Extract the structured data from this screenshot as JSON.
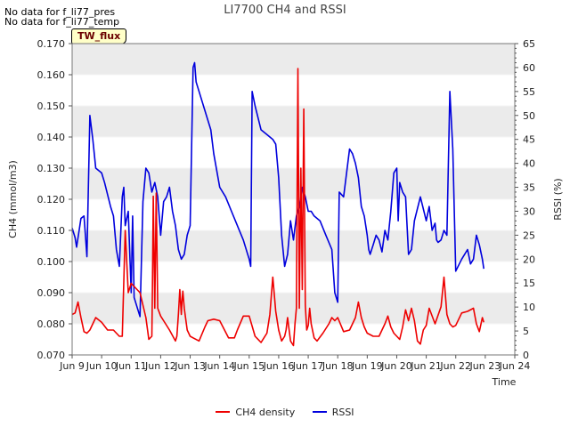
{
  "nodata": [
    "No data for f_li77_pres",
    "No data for f_li77_temp"
  ],
  "tw_label": "TW_flux",
  "colors": {
    "ch4": "#ee0000",
    "rssi": "#0000dd",
    "band": "#ebebeb",
    "grid": "#ffffff"
  },
  "chart_data": {
    "type": "line",
    "title": "LI7700 CH4 and RSSI",
    "xlabel": "Time",
    "ylabel": "CH4 (mmol/m3)",
    "y2label": "RSSI (%)",
    "xlim": [
      9,
      24
    ],
    "ylim": [
      0.07,
      0.17
    ],
    "y2lim": [
      0,
      65
    ],
    "x_ticks": [
      9,
      10,
      11,
      12,
      13,
      14,
      15,
      16,
      17,
      18,
      19,
      20,
      21,
      22,
      23,
      24
    ],
    "x_tick_labels": [
      "Jun 9",
      "Jun 10",
      "Jun 11",
      "Jun 12",
      "Jun 13",
      "Jun 14",
      "Jun 15",
      "Jun 16",
      "Jun 17",
      "Jun 18",
      "Jun 19",
      "Jun 20",
      "Jun 21",
      "Jun 22",
      "Jun 23",
      "Jun 24"
    ],
    "y_ticks": [
      "0.070",
      "0.080",
      "0.090",
      "0.100",
      "0.110",
      "0.120",
      "0.130",
      "0.140",
      "0.150",
      "0.160",
      "0.170"
    ],
    "y2_ticks": [
      "0",
      "5",
      "10",
      "15",
      "20",
      "25",
      "30",
      "35",
      "40",
      "45",
      "50",
      "55",
      "60",
      "65"
    ],
    "grid": true,
    "legend": "bottom-center",
    "series": [
      {
        "name": "CH4 density",
        "axis": "left",
        "x": [
          9.0,
          9.1,
          9.2,
          9.3,
          9.4,
          9.5,
          9.6,
          9.8,
          10.0,
          10.2,
          10.4,
          10.6,
          10.7,
          10.8,
          10.9,
          11.0,
          11.3,
          11.5,
          11.6,
          11.7,
          11.72,
          11.75,
          11.8,
          11.85,
          11.9,
          12.0,
          12.1,
          12.3,
          12.5,
          12.55,
          12.6,
          12.65,
          12.7,
          12.72,
          12.75,
          12.8,
          12.9,
          13.0,
          13.1,
          13.3,
          13.5,
          13.6,
          13.8,
          14.0,
          14.3,
          14.5,
          14.6,
          14.8,
          15.0,
          15.2,
          15.4,
          15.6,
          15.7,
          15.8,
          15.9,
          16.0,
          16.1,
          16.2,
          16.25,
          16.3,
          16.4,
          16.5,
          16.55,
          16.6,
          16.65,
          16.7,
          16.75,
          16.8,
          16.85,
          16.9,
          16.95,
          17.0,
          17.05,
          17.1,
          17.2,
          17.3,
          17.5,
          17.7,
          17.8,
          17.9,
          18.0,
          18.2,
          18.4,
          18.6,
          18.7,
          18.8,
          18.9,
          19.0,
          19.2,
          19.4,
          19.6,
          19.7,
          19.8,
          19.9,
          20.0,
          20.1,
          20.2,
          20.3,
          20.4,
          20.5,
          20.6,
          20.7,
          20.8,
          20.9,
          21.0,
          21.1,
          21.3,
          21.5,
          21.6,
          21.7,
          21.8,
          21.9,
          22.0,
          22.2,
          22.4,
          22.6,
          22.7,
          22.8,
          22.9,
          22.95
        ],
        "y": [
          0.083,
          0.0835,
          0.087,
          0.082,
          0.0775,
          0.077,
          0.078,
          0.082,
          0.0805,
          0.078,
          0.078,
          0.076,
          0.076,
          0.11,
          0.09,
          0.093,
          0.09,
          0.082,
          0.075,
          0.076,
          0.09,
          0.121,
          0.085,
          0.122,
          0.085,
          0.0825,
          0.081,
          0.078,
          0.0745,
          0.076,
          0.083,
          0.091,
          0.083,
          0.087,
          0.0905,
          0.085,
          0.078,
          0.076,
          0.0755,
          0.0745,
          0.079,
          0.081,
          0.0815,
          0.081,
          0.0755,
          0.0755,
          0.078,
          0.0825,
          0.0825,
          0.076,
          0.074,
          0.077,
          0.083,
          0.095,
          0.084,
          0.078,
          0.0745,
          0.076,
          0.078,
          0.082,
          0.0745,
          0.073,
          0.08,
          0.085,
          0.162,
          0.085,
          0.13,
          0.091,
          0.149,
          0.086,
          0.078,
          0.0795,
          0.085,
          0.08,
          0.0755,
          0.0745,
          0.077,
          0.08,
          0.082,
          0.081,
          0.082,
          0.0775,
          0.078,
          0.082,
          0.087,
          0.082,
          0.079,
          0.077,
          0.076,
          0.076,
          0.08,
          0.0825,
          0.079,
          0.077,
          0.076,
          0.075,
          0.079,
          0.0845,
          0.081,
          0.085,
          0.081,
          0.0745,
          0.0735,
          0.078,
          0.0795,
          0.085,
          0.08,
          0.0855,
          0.095,
          0.083,
          0.08,
          0.079,
          0.0795,
          0.0835,
          0.084,
          0.085,
          0.08,
          0.0775,
          0.082,
          0.0805
        ]
      },
      {
        "name": "RSSI",
        "axis": "right",
        "x": [
          9.0,
          9.1,
          9.15,
          9.3,
          9.4,
          9.45,
          9.5,
          9.6,
          9.7,
          9.8,
          10.0,
          10.1,
          10.3,
          10.4,
          10.5,
          10.6,
          10.7,
          10.75,
          10.8,
          10.9,
          11.0,
          11.05,
          11.1,
          11.2,
          11.3,
          11.4,
          11.5,
          11.6,
          11.7,
          11.8,
          11.9,
          12.0,
          12.1,
          12.2,
          12.3,
          12.4,
          12.5,
          12.6,
          12.7,
          12.8,
          12.9,
          13.0,
          13.1,
          13.15,
          13.2,
          13.3,
          13.5,
          13.7,
          13.8,
          14.0,
          14.2,
          14.4,
          14.6,
          14.8,
          14.95,
          15.0,
          15.05,
          15.1,
          15.2,
          15.4,
          15.6,
          15.8,
          15.9,
          16.0,
          16.1,
          16.2,
          16.3,
          16.4,
          16.5,
          16.6,
          16.7,
          16.8,
          16.9,
          17.0,
          17.1,
          17.2,
          17.4,
          17.6,
          17.8,
          17.9,
          18.0,
          18.05,
          18.2,
          18.4,
          18.5,
          18.6,
          18.7,
          18.8,
          18.9,
          19.0,
          19.05,
          19.1,
          19.2,
          19.3,
          19.4,
          19.5,
          19.6,
          19.7,
          19.8,
          19.9,
          20.0,
          20.05,
          20.1,
          20.2,
          20.3,
          20.4,
          20.5,
          20.6,
          20.8,
          21.0,
          21.1,
          21.2,
          21.3,
          21.35,
          21.4,
          21.5,
          21.6,
          21.7,
          21.8,
          21.9,
          22.0,
          22.2,
          22.4,
          22.5,
          22.6,
          22.7,
          22.8,
          22.9,
          22.95
        ],
        "y": [
          26.5,
          24.5,
          22.5,
          28.5,
          29,
          25,
          20.5,
          50,
          45,
          39,
          38,
          36,
          31,
          29,
          22,
          18.5,
          33,
          35,
          27,
          30,
          13,
          29,
          12,
          10,
          8,
          32,
          39,
          38,
          34,
          36,
          33,
          25,
          32,
          33,
          35,
          30,
          27,
          22,
          20,
          21,
          25,
          27,
          60,
          61,
          57,
          55,
          51,
          47,
          42,
          35,
          33,
          30,
          27,
          24,
          21,
          20,
          18.5,
          55,
          52,
          47,
          46,
          45,
          44,
          37,
          25,
          18.5,
          21,
          28,
          24,
          29,
          31,
          35,
          33,
          30,
          30,
          29,
          28,
          25,
          22,
          13,
          11,
          34,
          33,
          43,
          42,
          40,
          37,
          31,
          29,
          25,
          22,
          21,
          23,
          25,
          24,
          21.5,
          26,
          24,
          30,
          38,
          39,
          28,
          36,
          34,
          33,
          21,
          22,
          28,
          33,
          28,
          31,
          26,
          27.5,
          24,
          23.5,
          24,
          26,
          25,
          55,
          43,
          17.5,
          20,
          22,
          19,
          20,
          25,
          23,
          20,
          18
        ]
      }
    ]
  }
}
